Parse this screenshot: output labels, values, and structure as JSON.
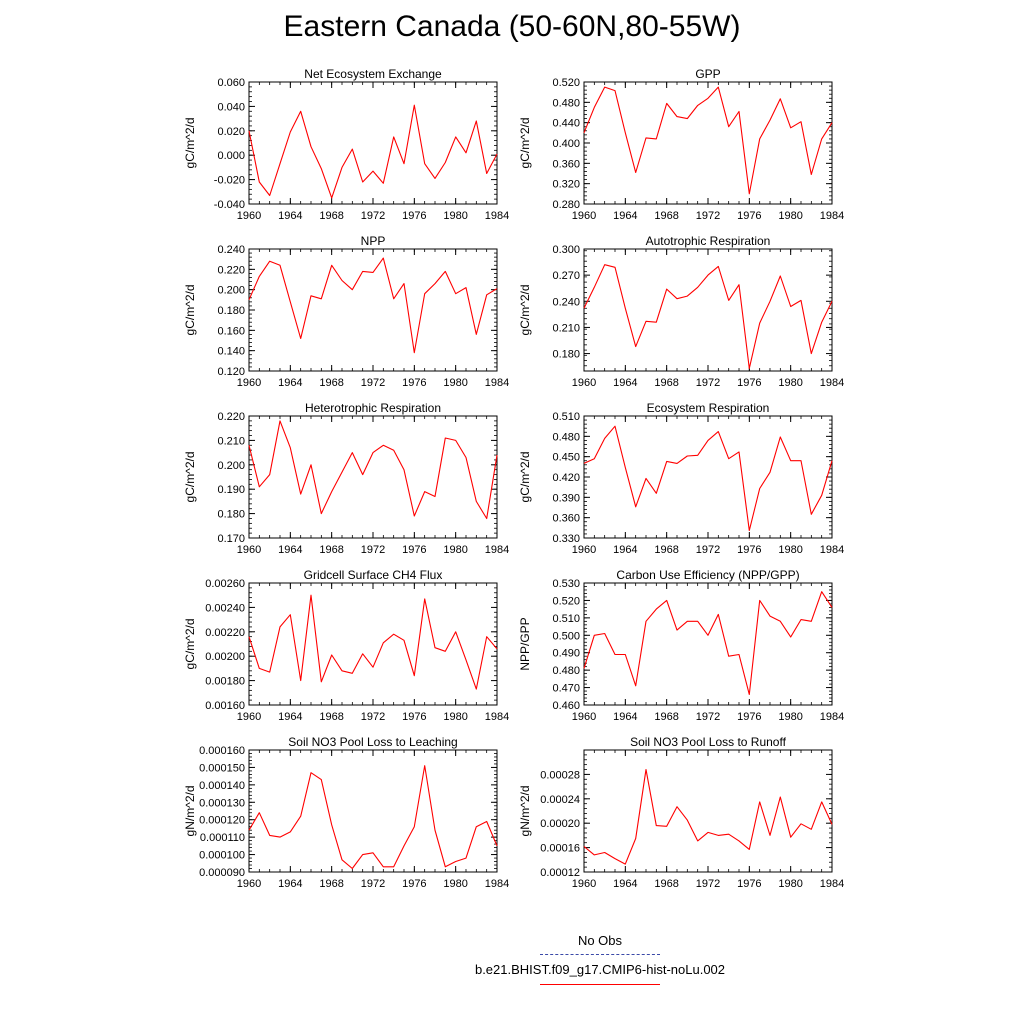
{
  "title": "Eastern Canada (50-60N,80-55W)",
  "legend": {
    "obs_label": "No Obs",
    "obs_color": "#3b49a8",
    "case_label": "b.e21.BHIST.f09_g17.CMIP6-hist-noLu.002",
    "case_color": "#ff0000"
  },
  "chart_data": [
    {
      "type": "line",
      "title": "Net Ecosystem Exchange",
      "ylabel": "gC/m^2/d",
      "xlim": [
        1960,
        1984
      ],
      "ylim": [
        -0.04,
        0.06
      ],
      "xticks": [
        "1960",
        "1964",
        "1968",
        "1972",
        "1976",
        "1980",
        "1984"
      ],
      "yticks": [
        "0.060",
        "0.040",
        "0.020",
        "0.000",
        "-0.020",
        "-0.040"
      ],
      "x": [
        1960,
        1961,
        1962,
        1963,
        1964,
        1965,
        1966,
        1967,
        1968,
        1969,
        1970,
        1971,
        1972,
        1973,
        1974,
        1975,
        1976,
        1977,
        1978,
        1979,
        1980,
        1981,
        1982,
        1983,
        1984
      ],
      "series": [
        {
          "values": [
            0.02,
            -0.022,
            -0.033,
            -0.007,
            0.019,
            0.036,
            0.007,
            -0.011,
            -0.035,
            -0.01,
            0.005,
            -0.022,
            -0.013,
            -0.023,
            0.015,
            -0.007,
            0.041,
            -0.007,
            -0.019,
            -0.006,
            0.015,
            0.002,
            0.028,
            -0.015,
            0.001
          ]
        }
      ]
    },
    {
      "type": "line",
      "title": "GPP",
      "ylabel": "gC/m^2/d",
      "xlim": [
        1960,
        1984
      ],
      "ylim": [
        0.28,
        0.52
      ],
      "xticks": [
        "1960",
        "1964",
        "1968",
        "1972",
        "1976",
        "1980",
        "1984"
      ],
      "yticks": [
        "0.520",
        "0.480",
        "0.440",
        "0.400",
        "0.360",
        "0.320",
        "0.280"
      ],
      "x": [
        1960,
        1961,
        1962,
        1963,
        1964,
        1965,
        1966,
        1967,
        1968,
        1969,
        1970,
        1971,
        1972,
        1973,
        1974,
        1975,
        1976,
        1977,
        1978,
        1979,
        1980,
        1981,
        1982,
        1983,
        1984
      ],
      "series": [
        {
          "values": [
            0.42,
            0.47,
            0.51,
            0.503,
            0.42,
            0.342,
            0.41,
            0.408,
            0.478,
            0.452,
            0.448,
            0.474,
            0.488,
            0.51,
            0.432,
            0.462,
            0.3,
            0.408,
            0.445,
            0.487,
            0.43,
            0.442,
            0.338,
            0.408,
            0.44
          ]
        }
      ]
    },
    {
      "type": "line",
      "title": "NPP",
      "ylabel": "gC/m^2/d",
      "xlim": [
        1960,
        1984
      ],
      "ylim": [
        0.12,
        0.24
      ],
      "xticks": [
        "1960",
        "1964",
        "1968",
        "1972",
        "1976",
        "1980",
        "1984"
      ],
      "yticks": [
        "0.240",
        "0.220",
        "0.200",
        "0.180",
        "0.160",
        "0.140",
        "0.120"
      ],
      "x": [
        1960,
        1961,
        1962,
        1963,
        1964,
        1965,
        1966,
        1967,
        1968,
        1969,
        1970,
        1971,
        1972,
        1973,
        1974,
        1975,
        1976,
        1977,
        1978,
        1979,
        1980,
        1981,
        1982,
        1983,
        1984
      ],
      "series": [
        {
          "values": [
            0.19,
            0.213,
            0.228,
            0.224,
            0.188,
            0.152,
            0.194,
            0.191,
            0.224,
            0.209,
            0.2,
            0.218,
            0.217,
            0.231,
            0.191,
            0.206,
            0.138,
            0.196,
            0.206,
            0.218,
            0.196,
            0.202,
            0.156,
            0.195,
            0.201
          ]
        }
      ]
    },
    {
      "type": "line",
      "title": "Autotrophic Respiration",
      "ylabel": "gC/m^2/d",
      "xlim": [
        1960,
        1984
      ],
      "ylim": [
        0.16,
        0.3
      ],
      "xticks": [
        "1960",
        "1964",
        "1968",
        "1972",
        "1976",
        "1980",
        "1984"
      ],
      "yticks": [
        "0.300",
        "0.270",
        "0.240",
        "0.210",
        "0.180"
      ],
      "x": [
        1960,
        1961,
        1962,
        1963,
        1964,
        1965,
        1966,
        1967,
        1968,
        1969,
        1970,
        1971,
        1972,
        1973,
        1974,
        1975,
        1976,
        1977,
        1978,
        1979,
        1980,
        1981,
        1982,
        1983,
        1984
      ],
      "series": [
        {
          "values": [
            0.232,
            0.256,
            0.282,
            0.279,
            0.232,
            0.188,
            0.217,
            0.216,
            0.254,
            0.243,
            0.246,
            0.256,
            0.27,
            0.28,
            0.241,
            0.259,
            0.163,
            0.215,
            0.24,
            0.269,
            0.234,
            0.241,
            0.18,
            0.216,
            0.24
          ]
        }
      ]
    },
    {
      "type": "line",
      "title": "Heterotrophic Respiration",
      "ylabel": "gC/m^2/d",
      "xlim": [
        1960,
        1984
      ],
      "ylim": [
        0.17,
        0.22
      ],
      "xticks": [
        "1960",
        "1964",
        "1968",
        "1972",
        "1976",
        "1980",
        "1984"
      ],
      "yticks": [
        "0.220",
        "0.210",
        "0.200",
        "0.190",
        "0.180",
        "0.170"
      ],
      "x": [
        1960,
        1961,
        1962,
        1963,
        1964,
        1965,
        1966,
        1967,
        1968,
        1969,
        1970,
        1971,
        1972,
        1973,
        1974,
        1975,
        1976,
        1977,
        1978,
        1979,
        1980,
        1981,
        1982,
        1983,
        1984
      ],
      "series": [
        {
          "values": [
            0.208,
            0.191,
            0.196,
            0.218,
            0.207,
            0.188,
            0.2,
            0.18,
            0.189,
            0.197,
            0.205,
            0.196,
            0.205,
            0.208,
            0.206,
            0.198,
            0.179,
            0.189,
            0.187,
            0.211,
            0.21,
            0.203,
            0.185,
            0.178,
            0.204
          ]
        }
      ]
    },
    {
      "type": "line",
      "title": "Ecosystem Respiration",
      "ylabel": "gC/m^2/d",
      "xlim": [
        1960,
        1984
      ],
      "ylim": [
        0.33,
        0.51
      ],
      "xticks": [
        "1960",
        "1964",
        "1968",
        "1972",
        "1976",
        "1980",
        "1984"
      ],
      "yticks": [
        "0.510",
        "0.480",
        "0.450",
        "0.420",
        "0.390",
        "0.360",
        "0.330"
      ],
      "x": [
        1960,
        1961,
        1962,
        1963,
        1964,
        1965,
        1966,
        1967,
        1968,
        1969,
        1970,
        1971,
        1972,
        1973,
        1974,
        1975,
        1976,
        1977,
        1978,
        1979,
        1980,
        1981,
        1982,
        1983,
        1984
      ],
      "series": [
        {
          "values": [
            0.44,
            0.447,
            0.477,
            0.495,
            0.434,
            0.376,
            0.418,
            0.396,
            0.443,
            0.44,
            0.451,
            0.452,
            0.474,
            0.487,
            0.447,
            0.457,
            0.341,
            0.403,
            0.427,
            0.479,
            0.444,
            0.444,
            0.365,
            0.393,
            0.444
          ]
        }
      ]
    },
    {
      "type": "line",
      "title": "Gridcell Surface CH4 Flux",
      "ylabel": "gC/m^2/d",
      "xlim": [
        1960,
        1984
      ],
      "ylim": [
        0.0016,
        0.0026
      ],
      "xticks": [
        "1960",
        "1964",
        "1968",
        "1972",
        "1976",
        "1980",
        "1984"
      ],
      "yticks": [
        "0.00260",
        "0.00240",
        "0.00220",
        "0.00200",
        "0.00180",
        "0.00160"
      ],
      "x": [
        1960,
        1961,
        1962,
        1963,
        1964,
        1965,
        1966,
        1967,
        1968,
        1969,
        1970,
        1971,
        1972,
        1973,
        1974,
        1975,
        1976,
        1977,
        1978,
        1979,
        1980,
        1981,
        1982,
        1983,
        1984
      ],
      "series": [
        {
          "values": [
            0.00216,
            0.0019,
            0.00187,
            0.00224,
            0.00234,
            0.0018,
            0.0025,
            0.00179,
            0.00201,
            0.00188,
            0.00186,
            0.00202,
            0.00191,
            0.00211,
            0.00218,
            0.00213,
            0.00184,
            0.00247,
            0.00207,
            0.00204,
            0.0022,
            0.00197,
            0.00173,
            0.00216,
            0.00206
          ]
        }
      ]
    },
    {
      "type": "line",
      "title": "Carbon Use Efficiency (NPP/GPP)",
      "ylabel": "NPP/GPP",
      "xlim": [
        1960,
        1984
      ],
      "ylim": [
        0.46,
        0.53
      ],
      "xticks": [
        "1960",
        "1964",
        "1968",
        "1972",
        "1976",
        "1980",
        "1984"
      ],
      "yticks": [
        "0.530",
        "0.520",
        "0.510",
        "0.500",
        "0.490",
        "0.480",
        "0.470",
        "0.460"
      ],
      "x": [
        1960,
        1961,
        1962,
        1963,
        1964,
        1965,
        1966,
        1967,
        1968,
        1969,
        1970,
        1971,
        1972,
        1973,
        1974,
        1975,
        1976,
        1977,
        1978,
        1979,
        1980,
        1981,
        1982,
        1983,
        1984
      ],
      "series": [
        {
          "values": [
            0.481,
            0.5,
            0.501,
            0.489,
            0.489,
            0.471,
            0.508,
            0.515,
            0.52,
            0.503,
            0.508,
            0.508,
            0.5,
            0.512,
            0.488,
            0.489,
            0.466,
            0.52,
            0.511,
            0.508,
            0.499,
            0.509,
            0.508,
            0.525,
            0.516
          ]
        }
      ]
    },
    {
      "type": "line",
      "title": "Soil NO3 Pool Loss to Leaching",
      "ylabel": "gN/m^2/d",
      "xlim": [
        1960,
        1984
      ],
      "ylim": [
        9e-05,
        0.00016
      ],
      "xticks": [
        "1960",
        "1964",
        "1968",
        "1972",
        "1976",
        "1980",
        "1984"
      ],
      "yticks": [
        "0.000160",
        "0.000150",
        "0.000140",
        "0.000130",
        "0.000120",
        "0.000110",
        "0.000100",
        "0.000090"
      ],
      "x": [
        1960,
        1961,
        1962,
        1963,
        1964,
        1965,
        1966,
        1967,
        1968,
        1969,
        1970,
        1971,
        1972,
        1973,
        1974,
        1975,
        1976,
        1977,
        1978,
        1979,
        1980,
        1981,
        1982,
        1983,
        1984
      ],
      "series": [
        {
          "values": [
            0.000114,
            0.000124,
            0.000111,
            0.00011,
            0.000113,
            0.000122,
            0.000147,
            0.000143,
            0.000117,
            9.7e-05,
            9.2e-05,
            0.0001,
            0.000101,
            9.3e-05,
            9.3e-05,
            0.000105,
            0.000116,
            0.000151,
            0.000114,
            9.3e-05,
            9.6e-05,
            9.8e-05,
            0.000116,
            0.000119,
            0.000105
          ]
        }
      ]
    },
    {
      "type": "line",
      "title": "Soil NO3 Pool Loss to Runoff",
      "ylabel": "gN/m^2/d",
      "xlim": [
        1960,
        1984
      ],
      "ylim": [
        0.00012,
        0.00032
      ],
      "xticks": [
        "1960",
        "1964",
        "1968",
        "1972",
        "1976",
        "1980",
        "1984"
      ],
      "yticks": [
        "0.00028",
        "0.00024",
        "0.00020",
        "0.00016",
        "0.00012"
      ],
      "x": [
        1960,
        1961,
        1962,
        1963,
        1964,
        1965,
        1966,
        1967,
        1968,
        1969,
        1970,
        1971,
        1972,
        1973,
        1974,
        1975,
        1976,
        1977,
        1978,
        1979,
        1980,
        1981,
        1982,
        1983,
        1984
      ],
      "series": [
        {
          "values": [
            0.000162,
            0.000148,
            0.000152,
            0.000142,
            0.000133,
            0.000175,
            0.000288,
            0.000196,
            0.000195,
            0.000227,
            0.000205,
            0.000171,
            0.000185,
            0.00018,
            0.000182,
            0.000171,
            0.000157,
            0.000235,
            0.00018,
            0.000243,
            0.000177,
            0.000199,
            0.00019,
            0.000235,
            0.000198
          ]
        }
      ]
    }
  ]
}
